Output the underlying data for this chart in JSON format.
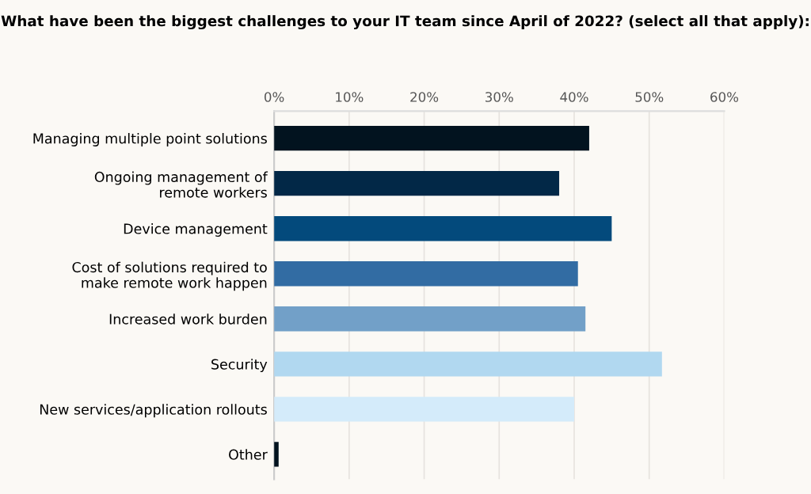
{
  "chart_data": {
    "type": "bar",
    "orientation": "horizontal",
    "title": "What have been the biggest challenges to your IT team since April of 2022? (select all that apply):",
    "categories": [
      "Managing multiple point solutions",
      "Ongoing management of\nremote workers",
      "Device management",
      "Cost of solutions required to\nmake remote work happen",
      "Increased work burden",
      "Security",
      "New services/application rollouts",
      "Other"
    ],
    "values": [
      42,
      38,
      45,
      40.5,
      41.5,
      51.7,
      40,
      0.6
    ],
    "colors": [
      "#02131f",
      "#022847",
      "#034a7c",
      "#326ca3",
      "#72a0c8",
      "#b1d8f0",
      "#d4ebfa",
      "#02131f"
    ],
    "xlim": [
      0,
      60
    ],
    "xticks": [
      {
        "value": 0,
        "label": "0%"
      },
      {
        "value": 10,
        "label": "10%"
      },
      {
        "value": 20,
        "label": "20%"
      },
      {
        "value": 30,
        "label": "30%"
      },
      {
        "value": 40,
        "label": "40%"
      },
      {
        "value": 50,
        "label": "50%"
      },
      {
        "value": 60,
        "label": "60%"
      }
    ],
    "grid": "x"
  }
}
